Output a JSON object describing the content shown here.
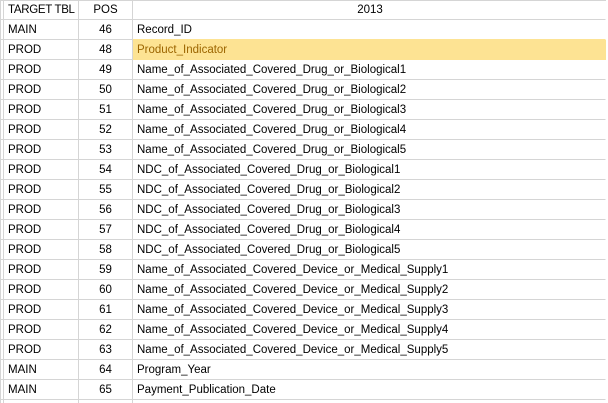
{
  "table": {
    "headers": [
      "TARGET TBL",
      "POS",
      "2013"
    ],
    "rows": [
      {
        "tbl": "MAIN",
        "pos": "46",
        "field": "Record_ID",
        "highlight": false
      },
      {
        "tbl": "PROD",
        "pos": "48",
        "field": "Product_Indicator",
        "highlight": true
      },
      {
        "tbl": "PROD",
        "pos": "49",
        "field": "Name_of_Associated_Covered_Drug_or_Biological1",
        "highlight": false
      },
      {
        "tbl": "PROD",
        "pos": "50",
        "field": "Name_of_Associated_Covered_Drug_or_Biological2",
        "highlight": false
      },
      {
        "tbl": "PROD",
        "pos": "51",
        "field": "Name_of_Associated_Covered_Drug_or_Biological3",
        "highlight": false
      },
      {
        "tbl": "PROD",
        "pos": "52",
        "field": "Name_of_Associated_Covered_Drug_or_Biological4",
        "highlight": false
      },
      {
        "tbl": "PROD",
        "pos": "53",
        "field": "Name_of_Associated_Covered_Drug_or_Biological5",
        "highlight": false
      },
      {
        "tbl": "PROD",
        "pos": "54",
        "field": "NDC_of_Associated_Covered_Drug_or_Biological1",
        "highlight": false
      },
      {
        "tbl": "PROD",
        "pos": "55",
        "field": "NDC_of_Associated_Covered_Drug_or_Biological2",
        "highlight": false
      },
      {
        "tbl": "PROD",
        "pos": "56",
        "field": "NDC_of_Associated_Covered_Drug_or_Biological3",
        "highlight": false
      },
      {
        "tbl": "PROD",
        "pos": "57",
        "field": "NDC_of_Associated_Covered_Drug_or_Biological4",
        "highlight": false
      },
      {
        "tbl": "PROD",
        "pos": "58",
        "field": "NDC_of_Associated_Covered_Drug_or_Biological5",
        "highlight": false
      },
      {
        "tbl": "PROD",
        "pos": "59",
        "field": "Name_of_Associated_Covered_Device_or_Medical_Supply1",
        "highlight": false
      },
      {
        "tbl": "PROD",
        "pos": "60",
        "field": "Name_of_Associated_Covered_Device_or_Medical_Supply2",
        "highlight": false
      },
      {
        "tbl": "PROD",
        "pos": "61",
        "field": "Name_of_Associated_Covered_Device_or_Medical_Supply3",
        "highlight": false
      },
      {
        "tbl": "PROD",
        "pos": "62",
        "field": "Name_of_Associated_Covered_Device_or_Medical_Supply4",
        "highlight": false
      },
      {
        "tbl": "PROD",
        "pos": "63",
        "field": "Name_of_Associated_Covered_Device_or_Medical_Supply5",
        "highlight": false
      },
      {
        "tbl": "MAIN",
        "pos": "64",
        "field": "Program_Year",
        "highlight": false
      },
      {
        "tbl": "MAIN",
        "pos": "65",
        "field": "Payment_Publication_Date",
        "highlight": false
      }
    ]
  },
  "colors": {
    "gridline": "#D5D5D5",
    "highlight_bg": "#FDE393",
    "highlight_text": "#9C6500",
    "background": "#FFFFFF",
    "text": "#000000"
  }
}
